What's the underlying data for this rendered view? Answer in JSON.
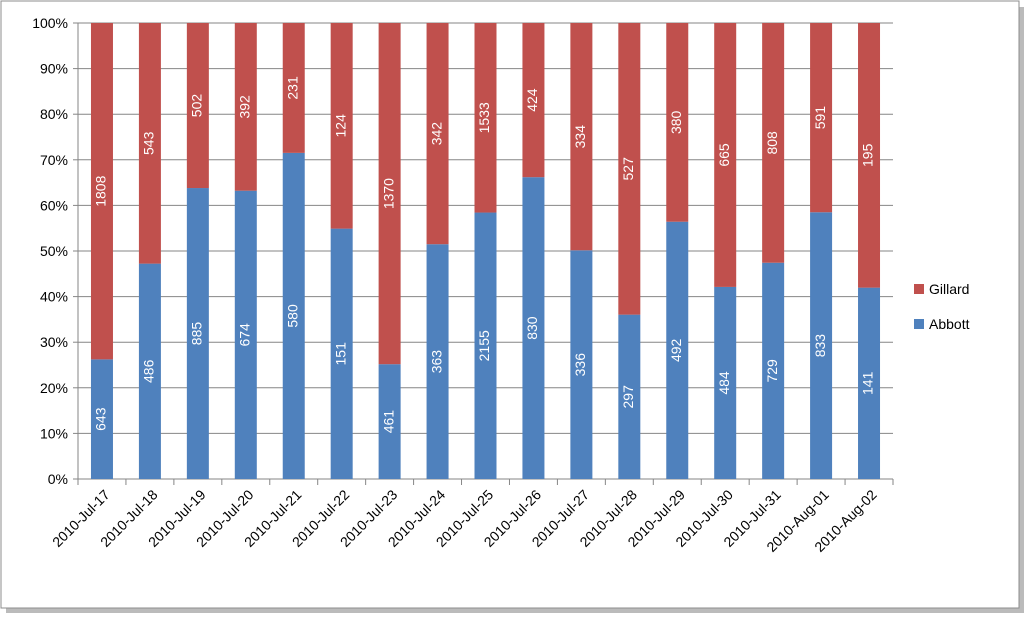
{
  "chart_data": {
    "type": "bar",
    "stacking": "percent",
    "categories": [
      "2010-Jul-17",
      "2010-Jul-18",
      "2010-Jul-19",
      "2010-Jul-20",
      "2010-Jul-21",
      "2010-Jul-22",
      "2010-Jul-23",
      "2010-Jul-24",
      "2010-Jul-25",
      "2010-Jul-26",
      "2010-Jul-27",
      "2010-Jul-28",
      "2010-Jul-29",
      "2010-Jul-30",
      "2010-Jul-31",
      "2010-Aug-01",
      "2010-Aug-02"
    ],
    "series": [
      {
        "name": "Abbott",
        "color": "#4f81bd",
        "values": [
          643,
          486,
          885,
          674,
          580,
          151,
          461,
          363,
          2155,
          830,
          336,
          297,
          492,
          484,
          729,
          833,
          141
        ]
      },
      {
        "name": "Gillard",
        "color": "#c0504d",
        "values": [
          1808,
          543,
          502,
          392,
          231,
          124,
          1370,
          342,
          1533,
          424,
          334,
          527,
          380,
          665,
          808,
          591,
          195
        ]
      }
    ],
    "ylim": [
      0,
      100
    ],
    "yticks": [
      {
        "value": 0,
        "label": "0%"
      },
      {
        "value": 10,
        "label": "10%"
      },
      {
        "value": 20,
        "label": "20%"
      },
      {
        "value": 30,
        "label": "30%"
      },
      {
        "value": 40,
        "label": "40%"
      },
      {
        "value": 50,
        "label": "50%"
      },
      {
        "value": 60,
        "label": "60%"
      },
      {
        "value": 70,
        "label": "70%"
      },
      {
        "value": 80,
        "label": "80%"
      },
      {
        "value": 90,
        "label": "90%"
      },
      {
        "value": 100,
        "label": "100%"
      }
    ],
    "grid": true,
    "legend": "right"
  }
}
